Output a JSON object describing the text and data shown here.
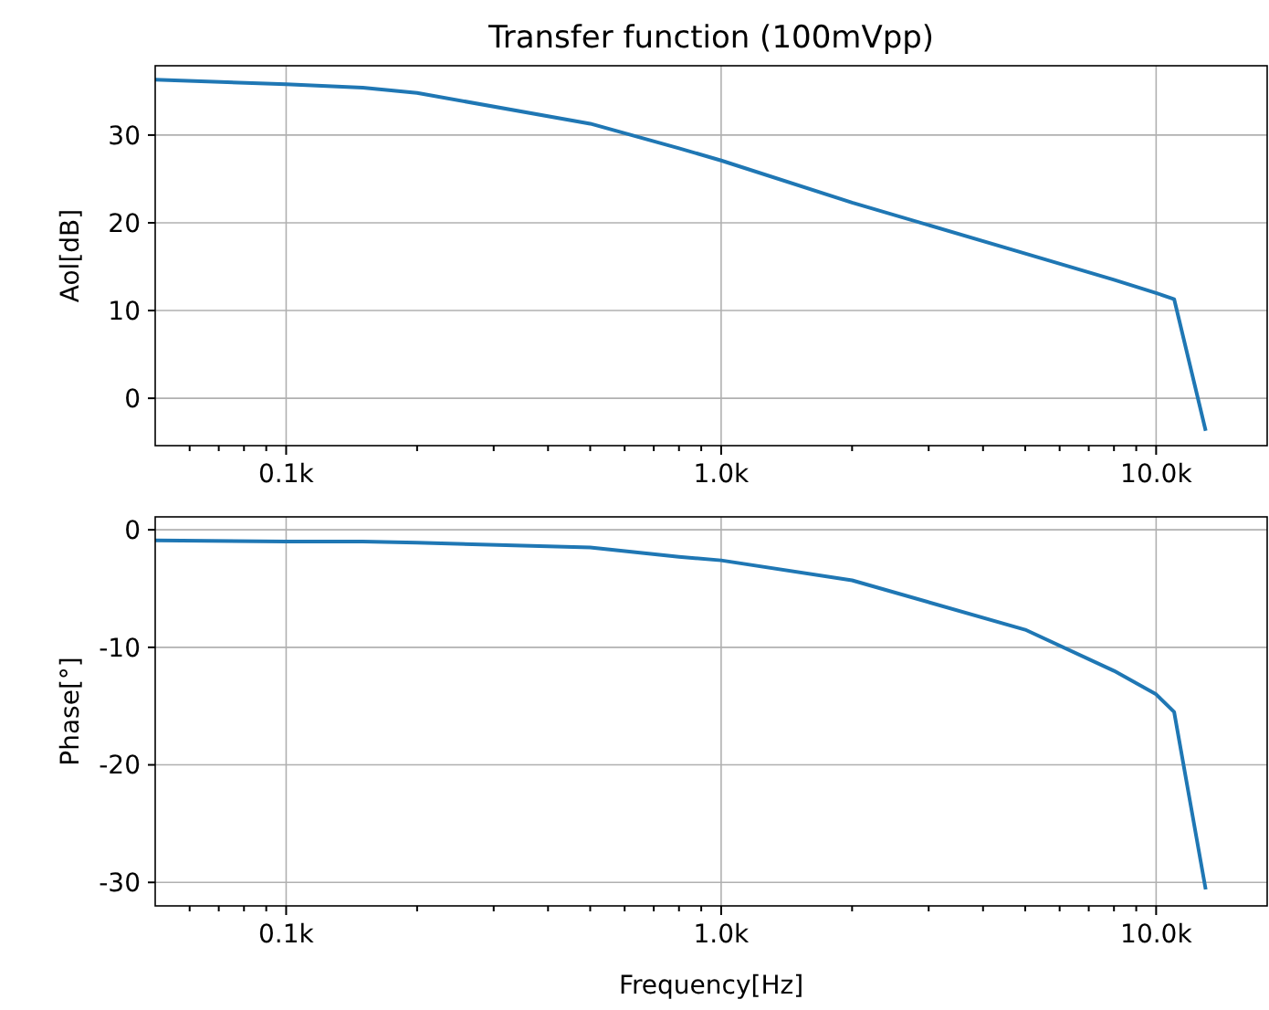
{
  "chart_data": [
    {
      "type": "line",
      "title": "Transfer function (100mVpp)",
      "ylabel": "Aol[dB]",
      "log": "x",
      "grid": true,
      "marker": "none",
      "line_style": "solid",
      "x": [
        50,
        100,
        150,
        200,
        500,
        800,
        1000,
        2000,
        5000,
        8000,
        10000,
        11000,
        13000
      ],
      "series": [
        {
          "color": "#1f77b4",
          "values": [
            36.3,
            35.8,
            35.4,
            34.8,
            31.3,
            28.5,
            27.1,
            22.3,
            16.5,
            13.5,
            12.0,
            11.3,
            -3.7
          ]
        }
      ],
      "xlim": [
        50,
        18000
      ],
      "ylim": [
        -5.4,
        37.9
      ],
      "yticks": [
        0,
        10,
        20,
        30
      ],
      "xticks": [
        {
          "value": 60,
          "label": null
        },
        {
          "value": 70,
          "label": null
        },
        {
          "value": 80,
          "label": null
        },
        {
          "value": 90,
          "label": null
        },
        {
          "value": 100,
          "label": "0.1k"
        },
        {
          "value": 200,
          "label": null
        },
        {
          "value": 300,
          "label": null
        },
        {
          "value": 400,
          "label": null
        },
        {
          "value": 500,
          "label": null
        },
        {
          "value": 600,
          "label": null
        },
        {
          "value": 700,
          "label": null
        },
        {
          "value": 800,
          "label": null
        },
        {
          "value": 900,
          "label": null
        },
        {
          "value": 1000,
          "label": "1.0k"
        },
        {
          "value": 2000,
          "label": null
        },
        {
          "value": 3000,
          "label": null
        },
        {
          "value": 4000,
          "label": null
        },
        {
          "value": 5000,
          "label": null
        },
        {
          "value": 6000,
          "label": null
        },
        {
          "value": 7000,
          "label": null
        },
        {
          "value": 8000,
          "label": null
        },
        {
          "value": 9000,
          "label": null
        },
        {
          "value": 10000,
          "label": "10.0k"
        }
      ]
    },
    {
      "type": "line",
      "xlabel": "Frequency[Hz]",
      "ylabel": "Phase[°]",
      "log": "x",
      "grid": true,
      "marker": "none",
      "line_style": "solid",
      "x": [
        50,
        100,
        150,
        200,
        500,
        800,
        1000,
        2000,
        5000,
        8000,
        10000,
        11000,
        13000
      ],
      "series": [
        {
          "color": "#1f77b4",
          "values": [
            -0.9,
            -1.0,
            -1.0,
            -1.1,
            -1.5,
            -2.3,
            -2.6,
            -4.3,
            -8.5,
            -12.0,
            -14.0,
            -15.5,
            -30.6
          ]
        }
      ],
      "xlim": [
        50,
        18000
      ],
      "ylim": [
        -32.0,
        1.1
      ],
      "yticks": [
        0,
        -10,
        -20,
        -30
      ],
      "xticks": [
        {
          "value": 60,
          "label": null
        },
        {
          "value": 70,
          "label": null
        },
        {
          "value": 80,
          "label": null
        },
        {
          "value": 90,
          "label": null
        },
        {
          "value": 100,
          "label": "0.1k"
        },
        {
          "value": 200,
          "label": null
        },
        {
          "value": 300,
          "label": null
        },
        {
          "value": 400,
          "label": null
        },
        {
          "value": 500,
          "label": null
        },
        {
          "value": 600,
          "label": null
        },
        {
          "value": 700,
          "label": null
        },
        {
          "value": 800,
          "label": null
        },
        {
          "value": 900,
          "label": null
        },
        {
          "value": 1000,
          "label": "1.0k"
        },
        {
          "value": 2000,
          "label": null
        },
        {
          "value": 3000,
          "label": null
        },
        {
          "value": 4000,
          "label": null
        },
        {
          "value": 5000,
          "label": null
        },
        {
          "value": 6000,
          "label": null
        },
        {
          "value": 7000,
          "label": null
        },
        {
          "value": 8000,
          "label": null
        },
        {
          "value": 9000,
          "label": null
        },
        {
          "value": 10000,
          "label": "10.0k"
        }
      ]
    }
  ]
}
